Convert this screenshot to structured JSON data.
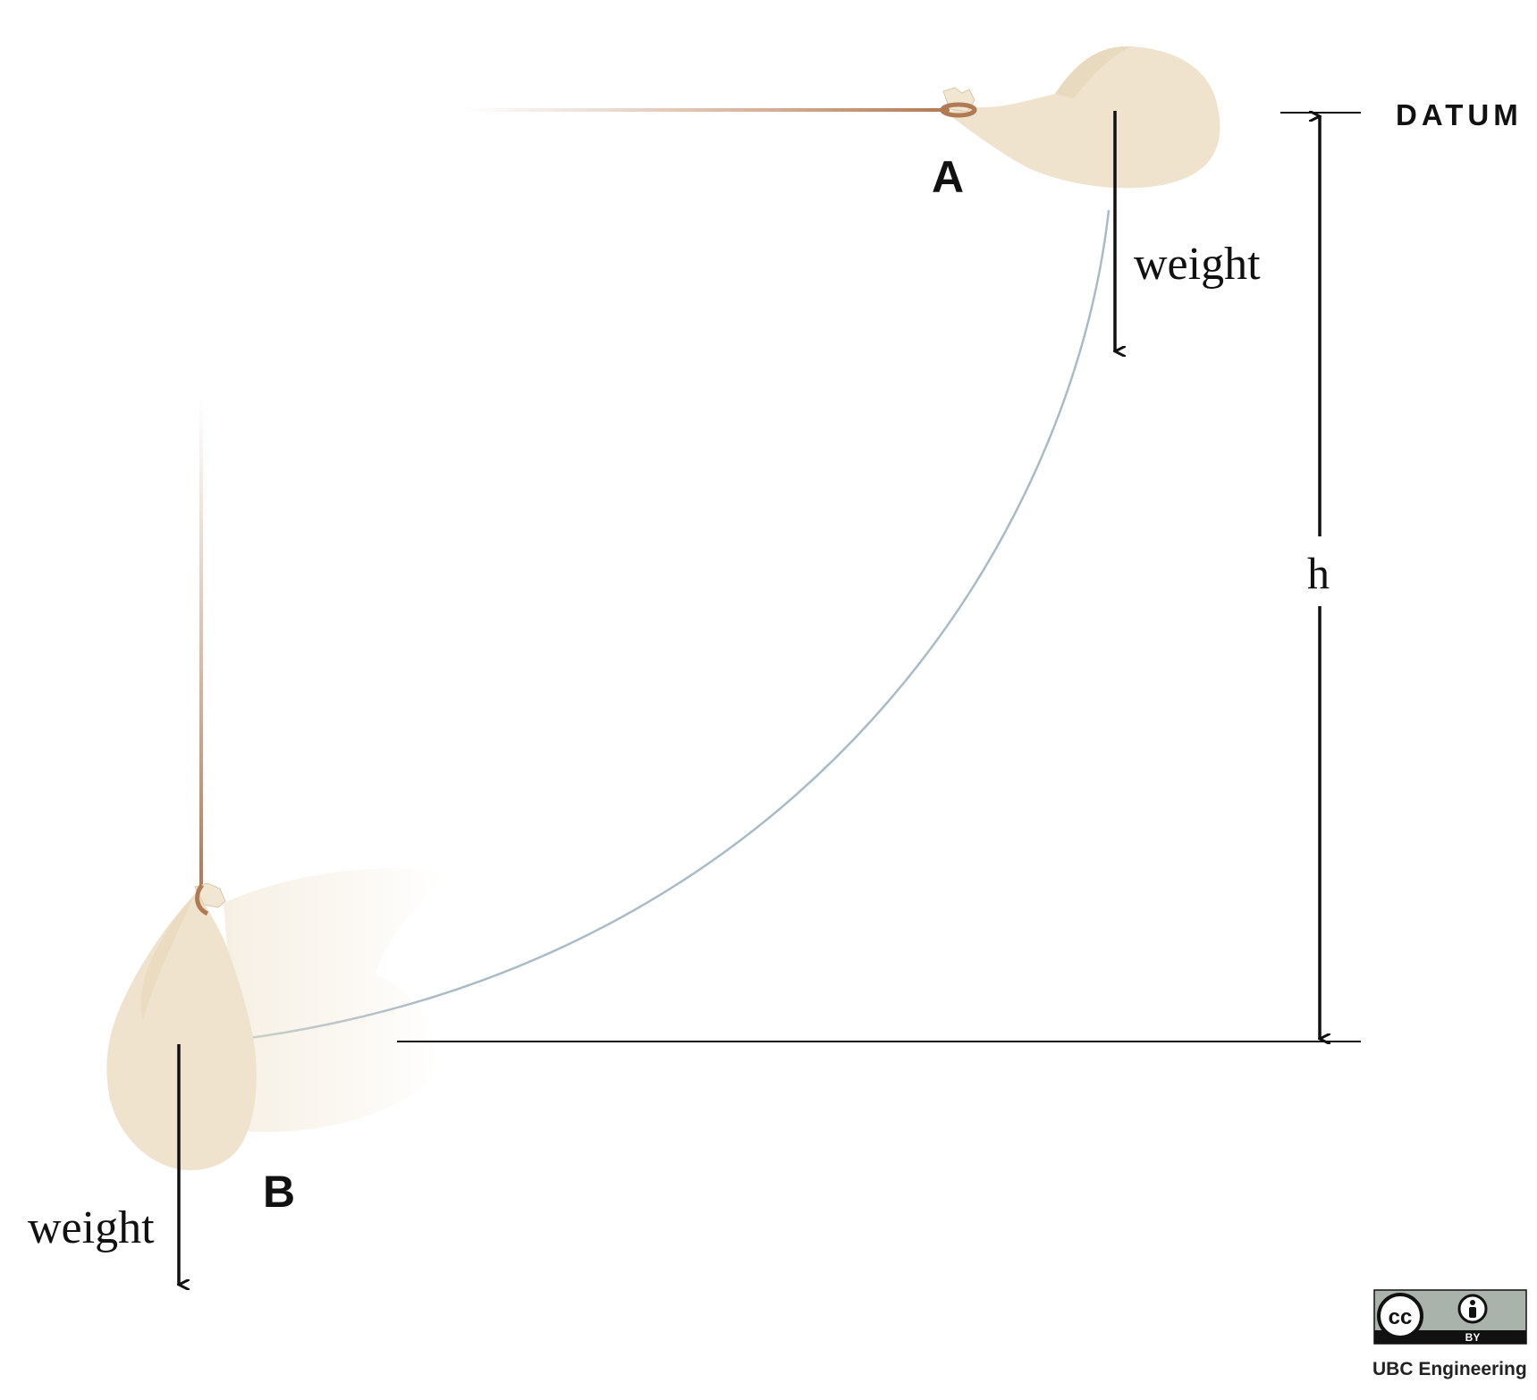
{
  "labels": {
    "datum": "DATUM",
    "point_a": "A",
    "point_b": "B",
    "weight_a": "weight",
    "weight_b": "weight",
    "height": "h"
  },
  "license": {
    "cc_symbol": "cc",
    "by_label": "BY",
    "credit": "UBC Engineering",
    "icons": [
      "creative-commons-icon",
      "attribution-person-icon"
    ]
  },
  "colors": {
    "bag": "#efe3cd",
    "bag_shade": "#e6d6b9",
    "rope": "#c08a66",
    "trajectory": "#a9bcc6",
    "lines": "#111111"
  }
}
